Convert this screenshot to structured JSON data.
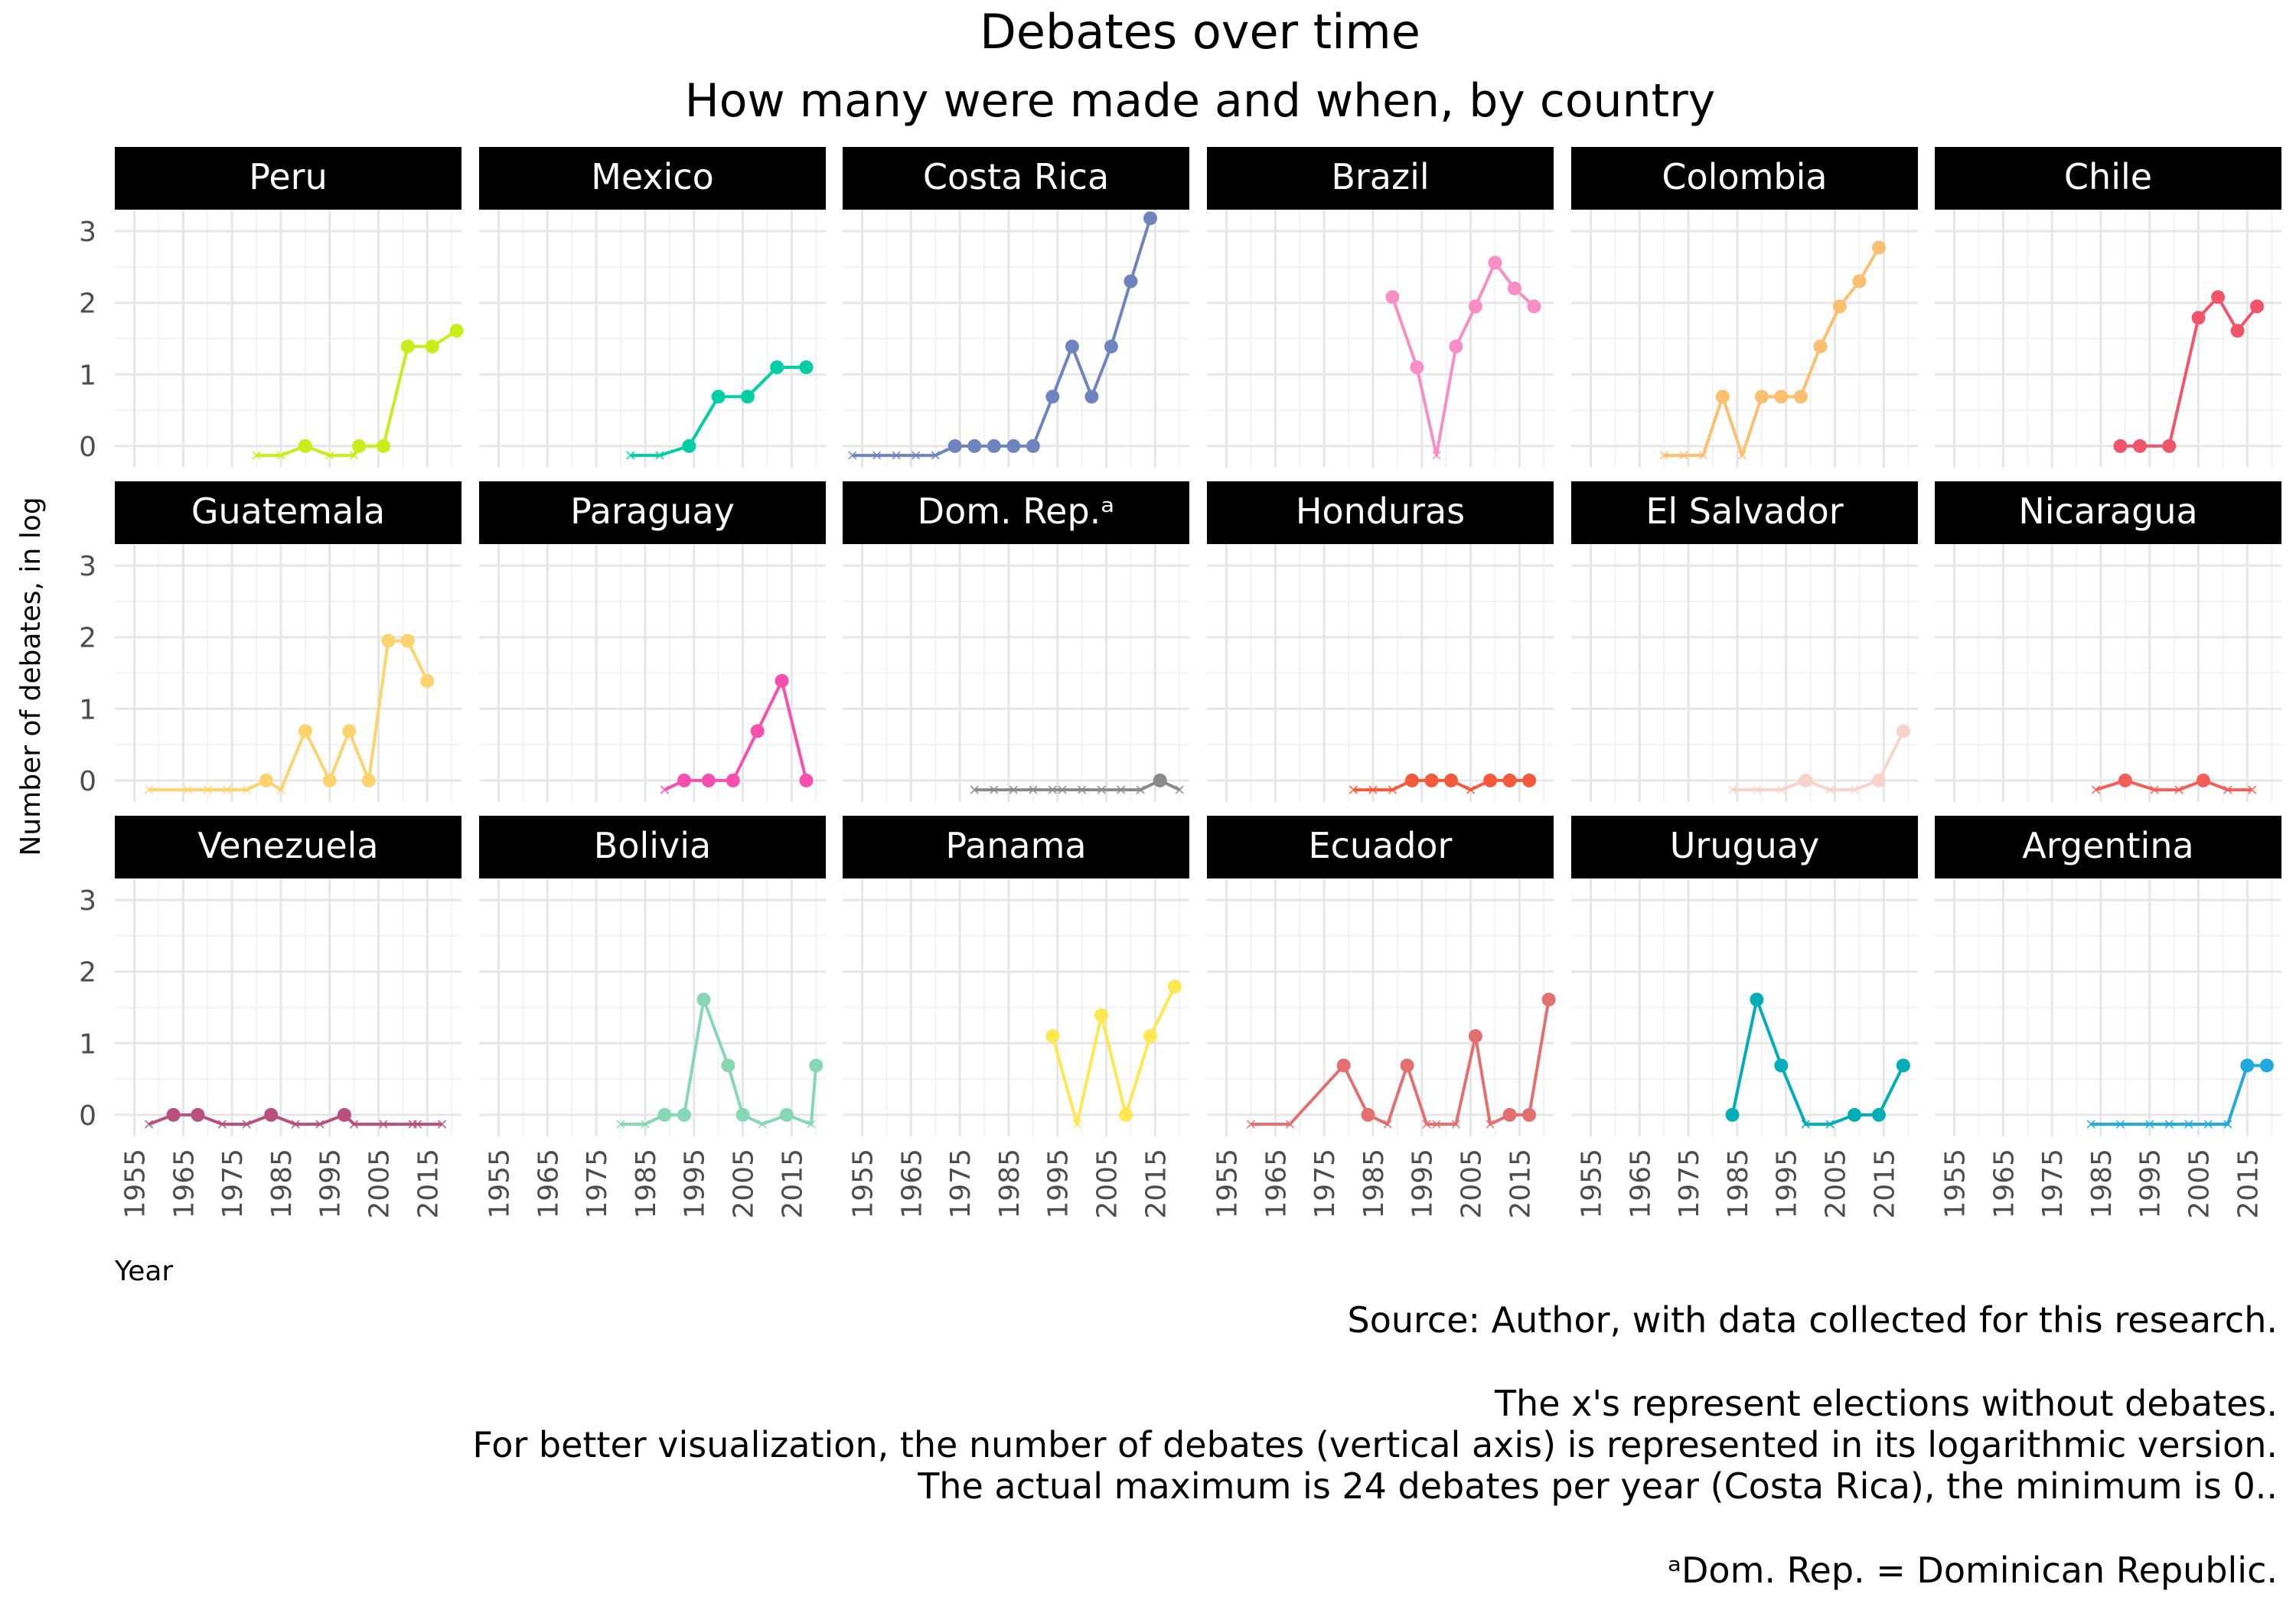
{
  "chart_data": {
    "type": "line",
    "title": "Debates over time",
    "subtitle": "How many were made and when, by country",
    "xlabel": "Year",
    "ylabel": "Number of debates, in log",
    "xlim": [
      1951,
      2022
    ],
    "ylim": [
      -0.3,
      3.3
    ],
    "x_ticks": [
      1955,
      1965,
      1975,
      1985,
      1995,
      2005,
      2015
    ],
    "y_ticks": [
      0,
      1,
      2,
      3
    ],
    "grid": true,
    "legend": "none",
    "panels": [
      {
        "name": "Peru",
        "color": "#c8ee1a",
        "points": [
          [
            1980,
            null
          ],
          [
            1985,
            null
          ],
          [
            1990,
            0
          ],
          [
            1995,
            null
          ],
          [
            2000,
            null
          ],
          [
            2001,
            0
          ],
          [
            2006,
            0
          ],
          [
            2011,
            1.39
          ],
          [
            2016,
            1.39
          ],
          [
            2021,
            1.61
          ]
        ]
      },
      {
        "name": "Mexico",
        "color": "#00cfa6",
        "points": [
          [
            1982,
            null
          ],
          [
            1988,
            null
          ],
          [
            1994,
            0
          ],
          [
            2000,
            0.69
          ],
          [
            2006,
            0.69
          ],
          [
            2012,
            1.1
          ],
          [
            2018,
            1.1
          ]
        ]
      },
      {
        "name": "Costa Rica",
        "color": "#6d84bf",
        "points": [
          [
            1953,
            null
          ],
          [
            1958,
            null
          ],
          [
            1962,
            null
          ],
          [
            1966,
            null
          ],
          [
            1970,
            null
          ],
          [
            1974,
            0
          ],
          [
            1978,
            0
          ],
          [
            1982,
            0
          ],
          [
            1986,
            0
          ],
          [
            1990,
            0
          ],
          [
            1994,
            0.69
          ],
          [
            1998,
            1.39
          ],
          [
            2002,
            0.69
          ],
          [
            2006,
            1.39
          ],
          [
            2010,
            2.3
          ],
          [
            2014,
            3.18
          ]
        ]
      },
      {
        "name": "Brazil",
        "color": "#f78fc6",
        "points": [
          [
            1989,
            2.08
          ],
          [
            1994,
            1.1
          ],
          [
            1998,
            null
          ],
          [
            2002,
            1.39
          ],
          [
            2006,
            1.95
          ],
          [
            2010,
            2.56
          ],
          [
            2014,
            2.2
          ],
          [
            2018,
            1.95
          ]
        ]
      },
      {
        "name": "Colombia",
        "color": "#fbbf6f",
        "points": [
          [
            1970,
            null
          ],
          [
            1974,
            null
          ],
          [
            1978,
            null
          ],
          [
            1982,
            0.69
          ],
          [
            1986,
            null
          ],
          [
            1990,
            0.69
          ],
          [
            1994,
            0.69
          ],
          [
            1998,
            0.69
          ],
          [
            2002,
            1.39
          ],
          [
            2006,
            1.95
          ],
          [
            2010,
            2.3
          ],
          [
            2014,
            2.77
          ]
        ]
      },
      {
        "name": "Chile",
        "color": "#f2546a",
        "points": [
          [
            1989,
            0
          ],
          [
            1993,
            0
          ],
          [
            1999,
            0
          ],
          [
            2005,
            1.79
          ],
          [
            2009,
            2.08
          ],
          [
            2013,
            1.61
          ],
          [
            2017,
            1.95
          ]
        ]
      },
      {
        "name": "Guatemala",
        "color": "#fdd36e",
        "points": [
          [
            1958,
            null
          ],
          [
            1966,
            null
          ],
          [
            1970,
            null
          ],
          [
            1974,
            null
          ],
          [
            1978,
            null
          ],
          [
            1982,
            0
          ],
          [
            1985,
            null
          ],
          [
            1990,
            0.69
          ],
          [
            1995,
            0
          ],
          [
            1999,
            0.69
          ],
          [
            2003,
            0
          ],
          [
            2007,
            1.95
          ],
          [
            2011,
            1.95
          ],
          [
            2015,
            1.39
          ]
        ]
      },
      {
        "name": "Paraguay",
        "color": "#f84fae",
        "points": [
          [
            1989,
            null
          ],
          [
            1993,
            0
          ],
          [
            1998,
            0
          ],
          [
            2003,
            0
          ],
          [
            2008,
            0.69
          ],
          [
            2013,
            1.39
          ],
          [
            2018,
            0
          ]
        ]
      },
      {
        "name": "Dom. Rep.ᵃ",
        "color": "#8a8a8a",
        "points": [
          [
            1978,
            null
          ],
          [
            1982,
            null
          ],
          [
            1986,
            null
          ],
          [
            1990,
            null
          ],
          [
            1994,
            null
          ],
          [
            1996,
            null
          ],
          [
            2000,
            null
          ],
          [
            2004,
            null
          ],
          [
            2008,
            null
          ],
          [
            2012,
            null
          ],
          [
            2016,
            0
          ],
          [
            2020,
            null
          ]
        ]
      },
      {
        "name": "Honduras",
        "color": "#f5593c",
        "points": [
          [
            1981,
            null
          ],
          [
            1985,
            null
          ],
          [
            1989,
            null
          ],
          [
            1993,
            0
          ],
          [
            1997,
            0
          ],
          [
            2001,
            0
          ],
          [
            2005,
            null
          ],
          [
            2009,
            0
          ],
          [
            2013,
            0
          ],
          [
            2017,
            0
          ]
        ]
      },
      {
        "name": "El Salvador",
        "color": "#f7d3c9",
        "points": [
          [
            1984,
            null
          ],
          [
            1989,
            null
          ],
          [
            1994,
            null
          ],
          [
            1999,
            0
          ],
          [
            2004,
            null
          ],
          [
            2009,
            null
          ],
          [
            2014,
            0
          ],
          [
            2019,
            0.69
          ]
        ]
      },
      {
        "name": "Nicaragua",
        "color": "#f35f57",
        "points": [
          [
            1984,
            null
          ],
          [
            1990,
            0
          ],
          [
            1996,
            null
          ],
          [
            2001,
            null
          ],
          [
            2006,
            0
          ],
          [
            2011,
            null
          ],
          [
            2016,
            null
          ]
        ]
      },
      {
        "name": "Venezuela",
        "color": "#b8507f",
        "points": [
          [
            1958,
            null
          ],
          [
            1963,
            0
          ],
          [
            1968,
            0
          ],
          [
            1973,
            null
          ],
          [
            1978,
            null
          ],
          [
            1983,
            0
          ],
          [
            1988,
            null
          ],
          [
            1993,
            null
          ],
          [
            1998,
            0
          ],
          [
            2000,
            null
          ],
          [
            2006,
            null
          ],
          [
            2012,
            null
          ],
          [
            2013,
            null
          ],
          [
            2018,
            null
          ]
        ]
      },
      {
        "name": "Bolivia",
        "color": "#86d7b5",
        "points": [
          [
            1980,
            null
          ],
          [
            1985,
            null
          ],
          [
            1989,
            0
          ],
          [
            1993,
            0
          ],
          [
            1997,
            1.61
          ],
          [
            2002,
            0.69
          ],
          [
            2005,
            0
          ],
          [
            2009,
            null
          ],
          [
            2014,
            0
          ],
          [
            2019,
            null
          ],
          [
            2020,
            0.69
          ]
        ]
      },
      {
        "name": "Panama",
        "color": "#fde84f",
        "points": [
          [
            1994,
            1.1
          ],
          [
            1999,
            null
          ],
          [
            2004,
            1.39
          ],
          [
            2009,
            0
          ],
          [
            2014,
            1.1
          ],
          [
            2019,
            1.79
          ]
        ]
      },
      {
        "name": "Ecuador",
        "color": "#e36f70",
        "points": [
          [
            1960,
            null
          ],
          [
            1968,
            null
          ],
          [
            1979,
            0.69
          ],
          [
            1984,
            0
          ],
          [
            1988,
            null
          ],
          [
            1992,
            0.69
          ],
          [
            1996,
            null
          ],
          [
            1998,
            null
          ],
          [
            2002,
            null
          ],
          [
            2006,
            1.1
          ],
          [
            2009,
            null
          ],
          [
            2013,
            0
          ],
          [
            2017,
            0
          ],
          [
            2021,
            1.61
          ]
        ]
      },
      {
        "name": "Uruguay",
        "color": "#00adb9",
        "points": [
          [
            1984,
            0
          ],
          [
            1989,
            1.61
          ],
          [
            1994,
            0.69
          ],
          [
            1999,
            null
          ],
          [
            2004,
            null
          ],
          [
            2009,
            0
          ],
          [
            2014,
            0
          ],
          [
            2019,
            0.69
          ]
        ]
      },
      {
        "name": "Argentina",
        "color": "#20a9dc",
        "points": [
          [
            1983,
            null
          ],
          [
            1989,
            null
          ],
          [
            1995,
            null
          ],
          [
            1999,
            null
          ],
          [
            2003,
            null
          ],
          [
            2007,
            null
          ],
          [
            2011,
            null
          ],
          [
            2015,
            0.69
          ],
          [
            2019,
            0.69
          ]
        ]
      }
    ]
  },
  "captions": {
    "source": "Source: Author, with data collected for this research.",
    "note1": "The x's represent elections without debates.",
    "note2": "For better visualization, the number of debates (vertical axis) is represented in its logarithmic version.",
    "note3": "The actual maximum is 24 debates per year (Costa Rica), the minimum is 0..",
    "note4": "ᵃDom. Rep. = Dominican Republic."
  }
}
